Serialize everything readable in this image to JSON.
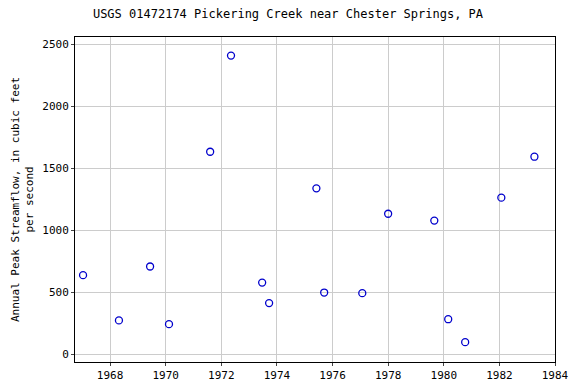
{
  "chart_data": {
    "type": "scatter",
    "title": "USGS 01472174 Pickering Creek near Chester Springs, PA",
    "y_label": "Annual Peak Streamflow, in cubic feet\nper second",
    "x": [
      1967.03,
      1968.32,
      1969.44,
      1970.12,
      1971.6,
      1972.35,
      1973.47,
      1973.72,
      1975.42,
      1975.7,
      1977.07,
      1978.0,
      1979.66,
      1980.16,
      1980.77,
      1982.07,
      1983.26
    ],
    "values": [
      640,
      275,
      710,
      245,
      1635,
      2410,
      580,
      415,
      1340,
      500,
      495,
      1135,
      1080,
      285,
      100,
      1265,
      1595
    ],
    "color": "#0000cc",
    "marker": "open_circle",
    "xlim": [
      1966.74,
      1984
    ],
    "xticks": [
      1968,
      1970,
      1972,
      1974,
      1976,
      1978,
      1980,
      1982,
      1984
    ],
    "ylim": [
      -60,
      2560
    ],
    "yticks": [
      0,
      500,
      1000,
      1500,
      2000,
      2500
    ],
    "grid": true
  }
}
